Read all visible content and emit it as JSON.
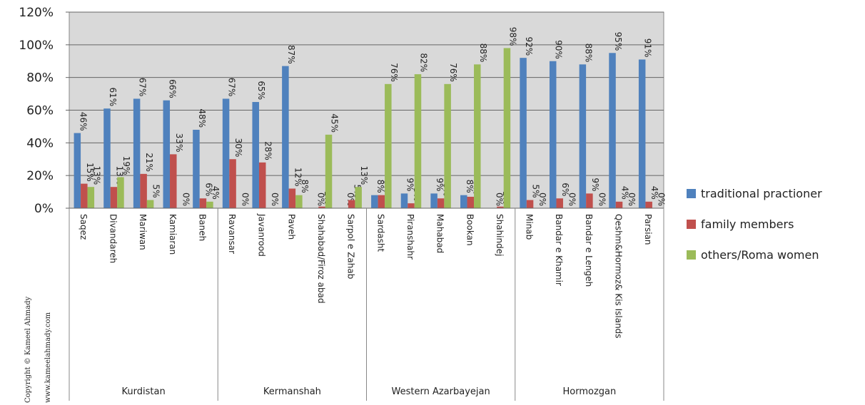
{
  "chart_data": {
    "type": "bar",
    "categories": [
      "Saqez",
      "Divandareh",
      "Mariwan",
      "Kamiaran",
      "Baneh",
      "Ravansar",
      "Javanrood",
      "Paveh",
      "Shahabad/Firoz abad",
      "Sarpol e Zahab",
      "Sardasht",
      "Piranshahr",
      "Mahabad",
      "Bookan",
      "Shahindej",
      "Minab",
      "Bandar e Khamir",
      "Bandar e Lengeh",
      "Qeshm&Hormoz& Kis Islands",
      "Parsian"
    ],
    "groups": [
      "Kurdistan",
      "Kermanshah",
      "Western Azarbayejan",
      "Hormozgan"
    ],
    "series": [
      {
        "name": "traditional practioner",
        "color": "#4f81bd",
        "values": [
          46,
          61,
          67,
          66,
          48,
          67,
          65,
          87,
          0,
          0,
          8,
          9,
          9,
          8,
          0,
          92,
          90,
          88,
          95,
          91
        ],
        "value_labels": [
          "46%",
          "61%",
          "67%",
          "66%",
          "48%",
          "67%",
          "65%",
          "87%",
          "0%",
          "0%",
          "8%",
          "9%",
          "9%",
          "8%",
          "0%",
          "92%",
          "90%",
          "88%",
          "95%",
          "91%"
        ]
      },
      {
        "name": "family members",
        "color": "#c0504d",
        "values": [
          15,
          13,
          21,
          33,
          6,
          30,
          28,
          12,
          1,
          5,
          8,
          3,
          6,
          7,
          1,
          5,
          6,
          9,
          4,
          4
        ],
        "value_labels": [
          "15%",
          "13%",
          "21%",
          "33%",
          "6%",
          "30%",
          "28%",
          "12%",
          "1%",
          "5%",
          "8%",
          "3%",
          "6%",
          "7%",
          "1%",
          "5%",
          "6%",
          "9%",
          "4%",
          "4%"
        ]
      },
      {
        "name": "others/Roma women",
        "color": "#9bbb59",
        "values": [
          13,
          19,
          5,
          0,
          4,
          0,
          0,
          8,
          45,
          13,
          76,
          82,
          76,
          88,
          98,
          0,
          0,
          0,
          0,
          0
        ],
        "value_labels": [
          "13%",
          "19%",
          "5%",
          "0%",
          "4%",
          "0%",
          "0%",
          "8%",
          "45%",
          "13%",
          "76%",
          "82%",
          "76%",
          "88%",
          "98%",
          "0%",
          "0%",
          "0%",
          "0%",
          "0%"
        ]
      }
    ],
    "ylim": [
      0,
      120
    ],
    "yticks": [
      {
        "value": 0,
        "label": "0%"
      },
      {
        "value": 20,
        "label": "20%"
      },
      {
        "value": 40,
        "label": "40%"
      },
      {
        "value": 60,
        "label": "60%"
      },
      {
        "value": 80,
        "label": "80%"
      },
      {
        "value": 100,
        "label": "100%"
      },
      {
        "value": 120,
        "label": "120%"
      }
    ],
    "grid": true,
    "legend": "right",
    "copyright": [
      "Copyright © Kameel Ahmady",
      "www.kameelahmady.com"
    ]
  }
}
